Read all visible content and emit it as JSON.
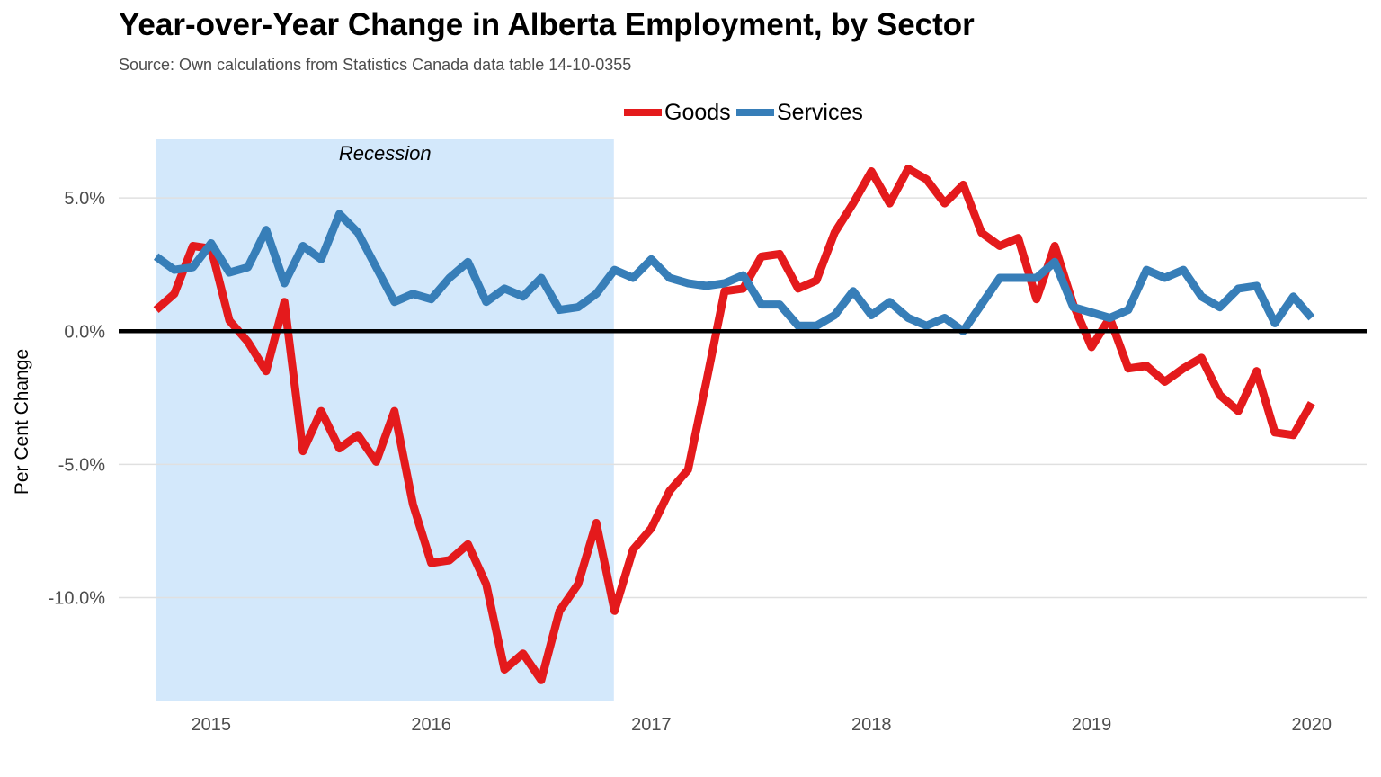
{
  "chart_data": {
    "type": "line",
    "title": "Year-over-Year Change in Alberta Employment, by Sector",
    "subtitle": "Source: Own calculations from Statistics Canada data table 14-10-0355",
    "xlabel": "",
    "ylabel": "Per Cent Change",
    "x_ticks": [
      {
        "label": "2015",
        "value": 2015.0
      },
      {
        "label": "2016",
        "value": 2016.0
      },
      {
        "label": "2017",
        "value": 2017.0
      },
      {
        "label": "2018",
        "value": 2018.0
      },
      {
        "label": "2019",
        "value": 2019.0
      },
      {
        "label": "2020",
        "value": 2020.0
      }
    ],
    "y_ticks": [
      {
        "label": "5.0%",
        "value": 5
      },
      {
        "label": "0.0%",
        "value": 0
      },
      {
        "label": "-5.0%",
        "value": -5
      },
      {
        "label": "-10.0%",
        "value": -10
      }
    ],
    "xlim": [
      2014.58,
      2020.25
    ],
    "ylim": [
      -13.9,
      7.2
    ],
    "grid": true,
    "legend_position": "top",
    "reference_line": {
      "y": 0,
      "color": "#000000"
    },
    "annotation": {
      "label": "Recession",
      "x_start": 2014.75,
      "x_end": 2016.83,
      "color": "#d3e8fb"
    },
    "x": [
      2014.75,
      2014.833,
      2014.917,
      2015.0,
      2015.083,
      2015.167,
      2015.25,
      2015.333,
      2015.417,
      2015.5,
      2015.583,
      2015.667,
      2015.75,
      2015.833,
      2015.917,
      2016.0,
      2016.083,
      2016.167,
      2016.25,
      2016.333,
      2016.417,
      2016.5,
      2016.583,
      2016.667,
      2016.75,
      2016.833,
      2016.917,
      2017.0,
      2017.083,
      2017.167,
      2017.25,
      2017.333,
      2017.417,
      2017.5,
      2017.583,
      2017.667,
      2017.75,
      2017.833,
      2017.917,
      2018.0,
      2018.083,
      2018.167,
      2018.25,
      2018.333,
      2018.417,
      2018.5,
      2018.583,
      2018.667,
      2018.75,
      2018.833,
      2018.917,
      2019.0,
      2019.083,
      2019.167,
      2019.25,
      2019.333,
      2019.417,
      2019.5,
      2019.583,
      2019.667,
      2019.75,
      2019.833,
      2019.917,
      2020.0
    ],
    "series": [
      {
        "name": "Goods",
        "color": "#e41a1c",
        "values": [
          0.8,
          1.4,
          3.2,
          3.1,
          0.4,
          -0.4,
          -1.5,
          1.1,
          -4.5,
          -3.0,
          -4.4,
          -3.9,
          -4.9,
          -3.0,
          -6.5,
          -8.7,
          -8.6,
          -8.0,
          -9.5,
          -12.7,
          -12.1,
          -13.1,
          -10.5,
          -9.5,
          -7.2,
          -10.5,
          -8.2,
          -7.4,
          -6.0,
          -5.2,
          -1.9,
          1.5,
          1.6,
          2.8,
          2.9,
          1.6,
          1.9,
          3.7,
          4.8,
          6.0,
          4.8,
          6.1,
          5.7,
          4.8,
          5.5,
          3.7,
          3.2,
          3.5,
          1.2,
          3.2,
          1.0,
          -0.6,
          0.5,
          -1.4,
          -1.3,
          -1.9,
          -1.4,
          -1.0,
          -2.4,
          -3.0,
          -1.5,
          -3.8,
          -3.9,
          -2.7
        ]
      },
      {
        "name": "Services",
        "color": "#377eb8",
        "values": [
          2.8,
          2.3,
          2.4,
          3.3,
          2.2,
          2.4,
          3.8,
          1.8,
          3.2,
          2.7,
          4.4,
          3.7,
          2.4,
          1.1,
          1.4,
          1.2,
          2.0,
          2.6,
          1.1,
          1.6,
          1.3,
          2.0,
          0.8,
          0.9,
          1.4,
          2.3,
          2.0,
          2.7,
          2.0,
          1.8,
          1.7,
          1.8,
          2.1,
          1.0,
          1.0,
          0.2,
          0.2,
          0.6,
          1.5,
          0.6,
          1.1,
          0.5,
          0.2,
          0.5,
          0.0,
          1.0,
          2.0,
          2.0,
          2.0,
          2.6,
          0.9,
          0.7,
          0.5,
          0.8,
          2.3,
          2.0,
          2.3,
          1.3,
          0.9,
          1.6,
          1.7,
          0.3,
          1.3,
          0.5
        ]
      }
    ]
  }
}
